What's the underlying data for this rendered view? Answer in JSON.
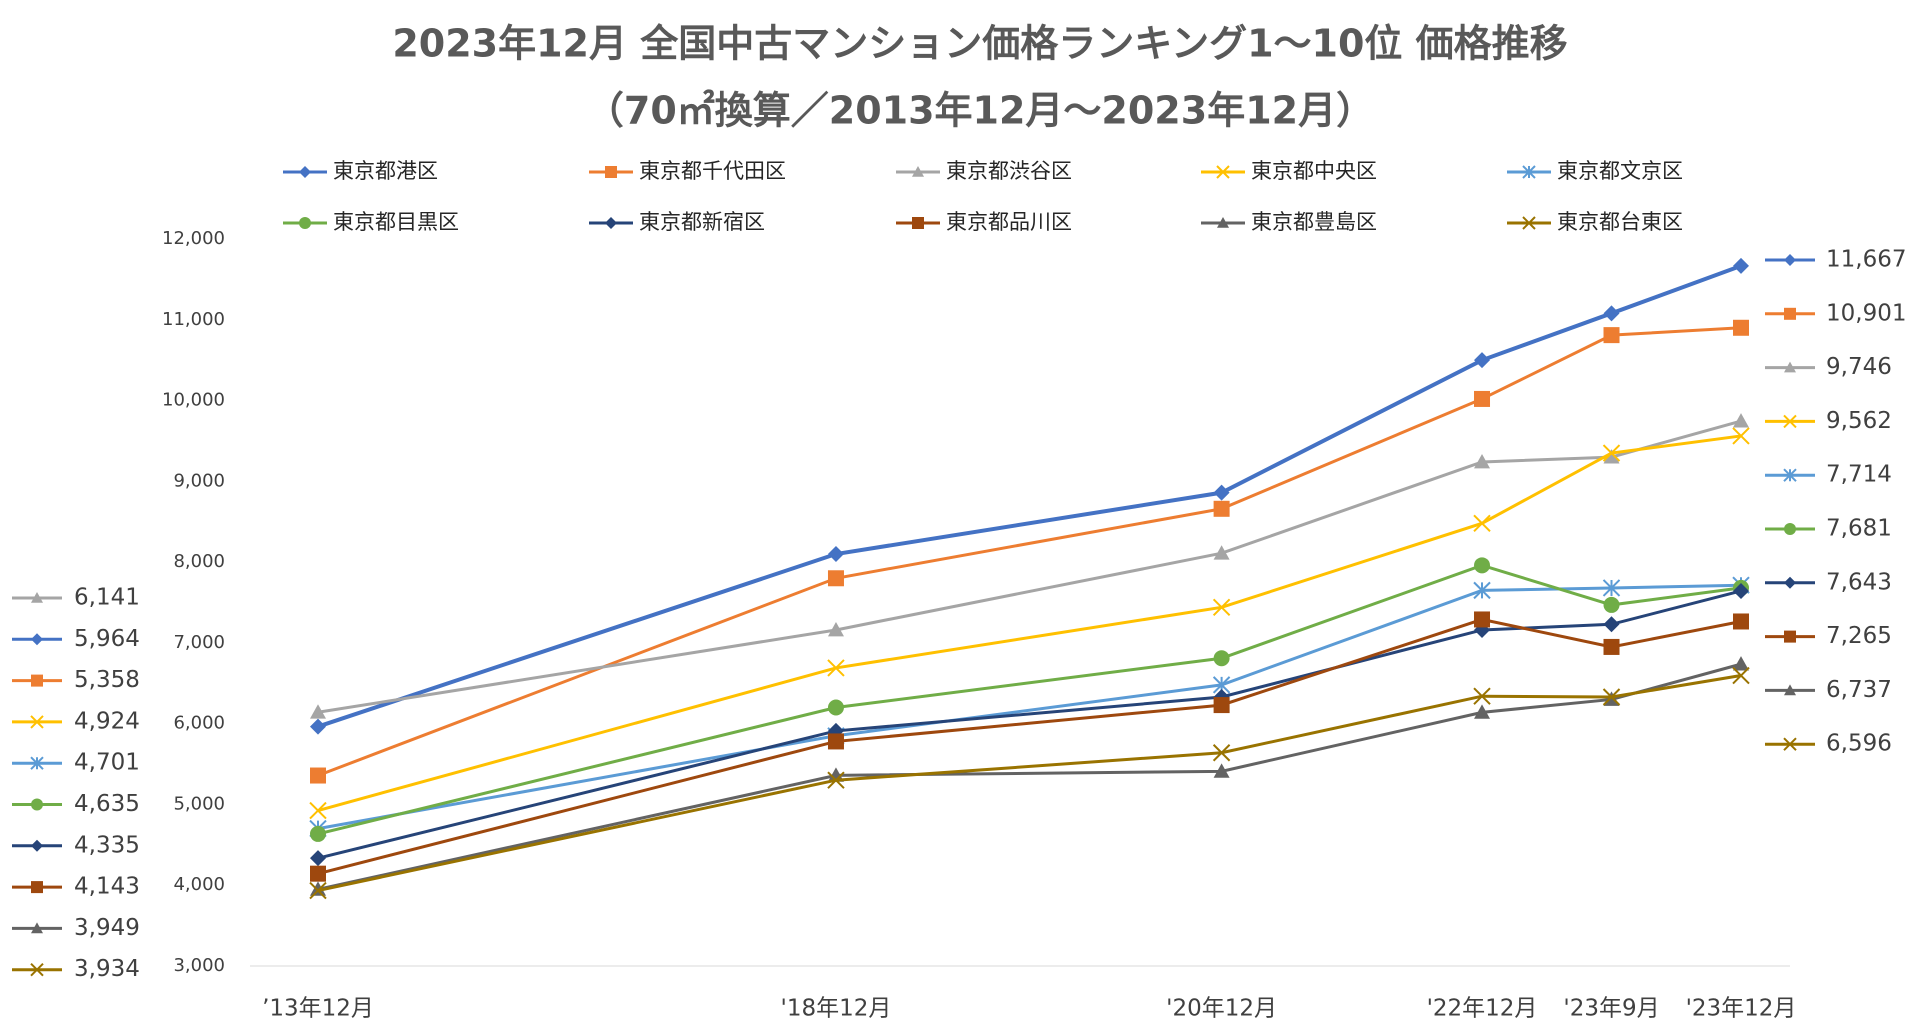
{
  "chart_data": {
    "type": "line",
    "title": "2023年12月 全国中古マンション価格ランキング1～10位 価格推移",
    "subtitle": "（70㎡換算／2013年12月～2023年12月）",
    "categories": [
      "’13年12月",
      "'18年12月",
      "'20年12月",
      "'22年12月",
      "'23年9月",
      "'23年12月"
    ],
    "ylim": [
      3000,
      12000
    ],
    "yticks": [
      {
        "value": 3000,
        "label": "3,000"
      },
      {
        "value": 4000,
        "label": "4,000"
      },
      {
        "value": 5000,
        "label": "5,000"
      },
      {
        "value": 6000,
        "label": "6,000"
      },
      {
        "value": 7000,
        "label": "7,000"
      },
      {
        "value": 8000,
        "label": "8,000"
      },
      {
        "value": 9000,
        "label": "9,000"
      },
      {
        "value": 10000,
        "label": "10,000"
      },
      {
        "value": 11000,
        "label": "11,000"
      },
      {
        "value": 12000,
        "label": "12,000"
      }
    ],
    "grid": false,
    "legend": "top",
    "series": [
      {
        "name": "東京都港区",
        "color": "#4472c4",
        "marker": "diamond",
        "values": [
          5964,
          8100,
          8860,
          10500,
          11080,
          11667
        ],
        "value_labels": [
          "5,964",
          null,
          null,
          null,
          null,
          "11,667"
        ]
      },
      {
        "name": "東京都千代田区",
        "color": "#ed7d31",
        "marker": "square",
        "values": [
          5358,
          7800,
          8660,
          10020,
          10810,
          10901
        ],
        "value_labels": [
          "5,358",
          null,
          null,
          null,
          null,
          "10,901"
        ]
      },
      {
        "name": "東京都渋谷区",
        "color": "#a5a5a5",
        "marker": "triangle",
        "values": [
          6141,
          7160,
          8110,
          9240,
          9300,
          9746
        ],
        "value_labels": [
          "6,141",
          null,
          null,
          null,
          null,
          "9,746"
        ]
      },
      {
        "name": "東京都中央区",
        "color": "#ffc000",
        "marker": "x",
        "values": [
          4924,
          6690,
          7440,
          8480,
          9350,
          9562
        ],
        "value_labels": [
          "4,924",
          null,
          null,
          null,
          null,
          "9,562"
        ]
      },
      {
        "name": "東京都文京区",
        "color": "#5b9bd5",
        "marker": "star",
        "values": [
          4701,
          5850,
          6480,
          7650,
          7680,
          7714
        ],
        "value_labels": [
          "4,701",
          null,
          null,
          null,
          null,
          "7,714"
        ]
      },
      {
        "name": "東京都目黒区",
        "color": "#70ad47",
        "marker": "circle",
        "values": [
          4635,
          6200,
          6810,
          7960,
          7470,
          7681
        ],
        "value_labels": [
          "4,635",
          null,
          null,
          null,
          null,
          "7,681"
        ]
      },
      {
        "name": "東京都新宿区",
        "color": "#264478",
        "marker": "diamond",
        "values": [
          4335,
          5910,
          6330,
          7160,
          7230,
          7643
        ],
        "value_labels": [
          "4,335",
          null,
          null,
          null,
          null,
          "7,643"
        ]
      },
      {
        "name": "東京都品川区",
        "color": "#9e480e",
        "marker": "square",
        "values": [
          4143,
          5780,
          6230,
          7290,
          6950,
          7265
        ],
        "value_labels": [
          "4,143",
          null,
          null,
          null,
          null,
          "7,265"
        ]
      },
      {
        "name": "東京都豊島区",
        "color": "#636363",
        "marker": "triangle",
        "values": [
          3949,
          5360,
          5410,
          6140,
          6300,
          6737
        ],
        "value_labels": [
          "3,949",
          null,
          null,
          null,
          null,
          "6,737"
        ]
      },
      {
        "name": "東京都台東区",
        "color": "#997300",
        "marker": "x",
        "values": [
          3934,
          5300,
          5640,
          6340,
          6330,
          6596
        ],
        "value_labels": [
          "3,934",
          null,
          null,
          null,
          null,
          "6,596"
        ]
      }
    ]
  }
}
